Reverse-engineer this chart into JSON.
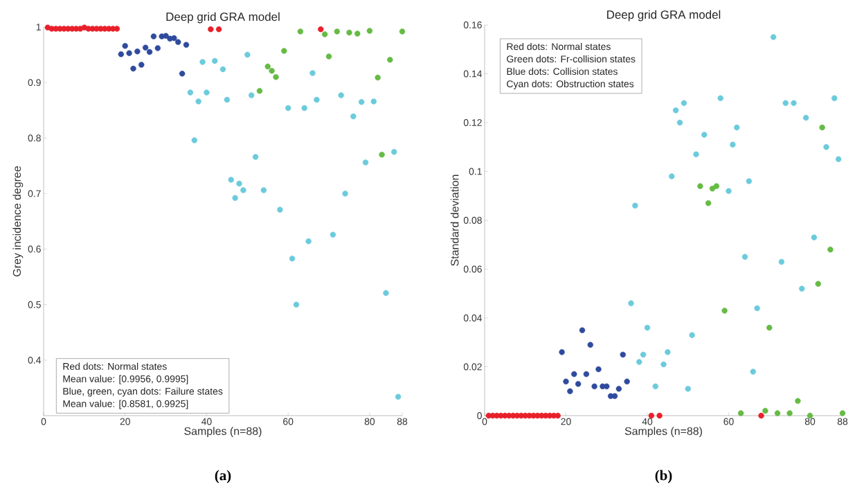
{
  "chart_data": [
    {
      "type": "scatter",
      "title": "Deep grid GRA model",
      "xlabel": "Samples (n=88)",
      "ylabel": "Grey incidence degree",
      "xlim": [
        0,
        88
      ],
      "ylim": [
        0.3,
        1
      ],
      "xticks": [
        0,
        20,
        40,
        60,
        80,
        88
      ],
      "yticks": [
        0.4,
        0.5,
        0.6,
        0.7,
        0.8,
        0.9,
        1
      ],
      "marker": "circle",
      "series": [
        {
          "color": "#e8202a",
          "x": [
            1,
            2,
            3,
            4,
            5,
            6,
            7,
            8,
            9,
            10,
            11,
            12,
            13,
            14,
            15,
            16,
            17,
            18,
            41,
            43,
            68
          ],
          "values": [
            0.999,
            0.997,
            0.997,
            0.997,
            0.997,
            0.997,
            0.997,
            0.997,
            0.997,
            0.999,
            0.997,
            0.997,
            0.997,
            0.997,
            0.997,
            0.997,
            0.997,
            0.997,
            0.996,
            0.996,
            0.996
          ]
        },
        {
          "color": "#2f4b9e",
          "x": [
            19,
            20,
            21,
            22,
            23,
            24,
            25,
            26,
            27,
            28,
            29,
            30,
            31,
            32,
            33,
            34,
            35
          ],
          "values": [
            0.951,
            0.966,
            0.953,
            0.925,
            0.956,
            0.932,
            0.963,
            0.955,
            0.983,
            0.962,
            0.983,
            0.984,
            0.979,
            0.98,
            0.973,
            0.916,
            0.968
          ]
        },
        {
          "color": "#66bb44",
          "x": [
            53,
            55,
            56,
            57,
            59,
            63,
            69,
            70,
            72,
            75,
            77,
            80,
            82,
            83,
            85,
            88
          ],
          "values": [
            0.885,
            0.929,
            0.921,
            0.91,
            0.957,
            0.992,
            0.987,
            0.947,
            0.992,
            0.99,
            0.988,
            0.993,
            0.909,
            0.77,
            0.941,
            0.992
          ]
        },
        {
          "color": "#6bcbdc",
          "x": [
            36,
            37,
            38,
            39,
            40,
            42,
            44,
            45,
            46,
            47,
            48,
            49,
            50,
            51,
            52,
            54,
            58,
            60,
            61,
            62,
            64,
            65,
            66,
            67,
            71,
            73,
            74,
            76,
            78,
            79,
            81,
            84,
            86,
            87
          ],
          "values": [
            0.882,
            0.796,
            0.866,
            0.937,
            0.882,
            0.939,
            0.924,
            0.869,
            0.725,
            0.692,
            0.718,
            0.706,
            0.95,
            0.877,
            0.766,
            0.706,
            0.671,
            0.854,
            0.583,
            0.5,
            0.854,
            0.614,
            0.917,
            0.869,
            0.626,
            0.877,
            0.7,
            0.839,
            0.865,
            0.756,
            0.866,
            0.521,
            0.775,
            0.334
          ]
        }
      ],
      "annotations": [
        "Red dots: Normal states",
        "Mean value: [0.9956, 0.9995]",
        "Blue, green, cyan dots: Failure states",
        "Mean value: [0.8581, 0.9925]",
        "(a)"
      ]
    },
    {
      "type": "scatter",
      "title": "Deep grid GRA model",
      "xlabel": "Samples (n=88)",
      "ylabel": "Standard deviation",
      "xlim": [
        0,
        88
      ],
      "ylim": [
        0,
        0.16
      ],
      "xticks": [
        0,
        20,
        40,
        60,
        80,
        88
      ],
      "yticks": [
        0,
        0.02,
        0.04,
        0.06,
        0.08,
        0.1,
        0.12,
        0.14,
        0.16
      ],
      "marker": "circle",
      "series": [
        {
          "color": "#e8202a",
          "x": [
            1,
            2,
            3,
            4,
            5,
            6,
            7,
            8,
            9,
            10,
            11,
            12,
            13,
            14,
            15,
            16,
            17,
            18,
            41,
            43,
            68
          ],
          "values": [
            0,
            0,
            0,
            0,
            0,
            0,
            0,
            0,
            0,
            0,
            0,
            0,
            0,
            0,
            0,
            0,
            0,
            0,
            0,
            0,
            0
          ]
        },
        {
          "color": "#2f4b9e",
          "x": [
            19,
            20,
            21,
            22,
            23,
            24,
            25,
            26,
            27,
            28,
            29,
            30,
            31,
            32,
            33,
            34,
            35
          ],
          "values": [
            0.026,
            0.014,
            0.01,
            0.017,
            0.013,
            0.035,
            0.017,
            0.029,
            0.012,
            0.019,
            0.012,
            0.012,
            0.008,
            0.008,
            0.011,
            0.025,
            0.014
          ]
        },
        {
          "color": "#66bb44",
          "x": [
            53,
            55,
            56,
            57,
            59,
            63,
            69,
            70,
            72,
            75,
            77,
            80,
            82,
            83,
            85,
            88
          ],
          "values": [
            0.094,
            0.087,
            0.093,
            0.094,
            0.043,
            0.001,
            0.002,
            0.036,
            0.001,
            0.001,
            0.006,
            0.0,
            0.054,
            0.118,
            0.068,
            0.001
          ]
        },
        {
          "color": "#6bcbdc",
          "x": [
            36,
            37,
            38,
            39,
            40,
            42,
            44,
            45,
            46,
            47,
            48,
            49,
            50,
            51,
            52,
            54,
            58,
            60,
            61,
            62,
            64,
            65,
            66,
            67,
            71,
            73,
            74,
            76,
            78,
            79,
            81,
            84,
            86,
            87
          ],
          "values": [
            0.046,
            0.086,
            0.022,
            0.025,
            0.036,
            0.012,
            0.021,
            0.026,
            0.098,
            0.125,
            0.12,
            0.128,
            0.011,
            0.033,
            0.107,
            0.115,
            0.13,
            0.092,
            0.111,
            0.118,
            0.065,
            0.096,
            0.018,
            0.044,
            0.155,
            0.063,
            0.128,
            0.128,
            0.052,
            0.122,
            0.073,
            0.11,
            0.13,
            0.105
          ]
        }
      ],
      "annotations": [
        "Red dots: Normal states",
        "Green dots: Fr-collision states",
        "Blue dots: Collision states",
        "Cyan dots: Obstruction states",
        "(b)"
      ]
    }
  ]
}
